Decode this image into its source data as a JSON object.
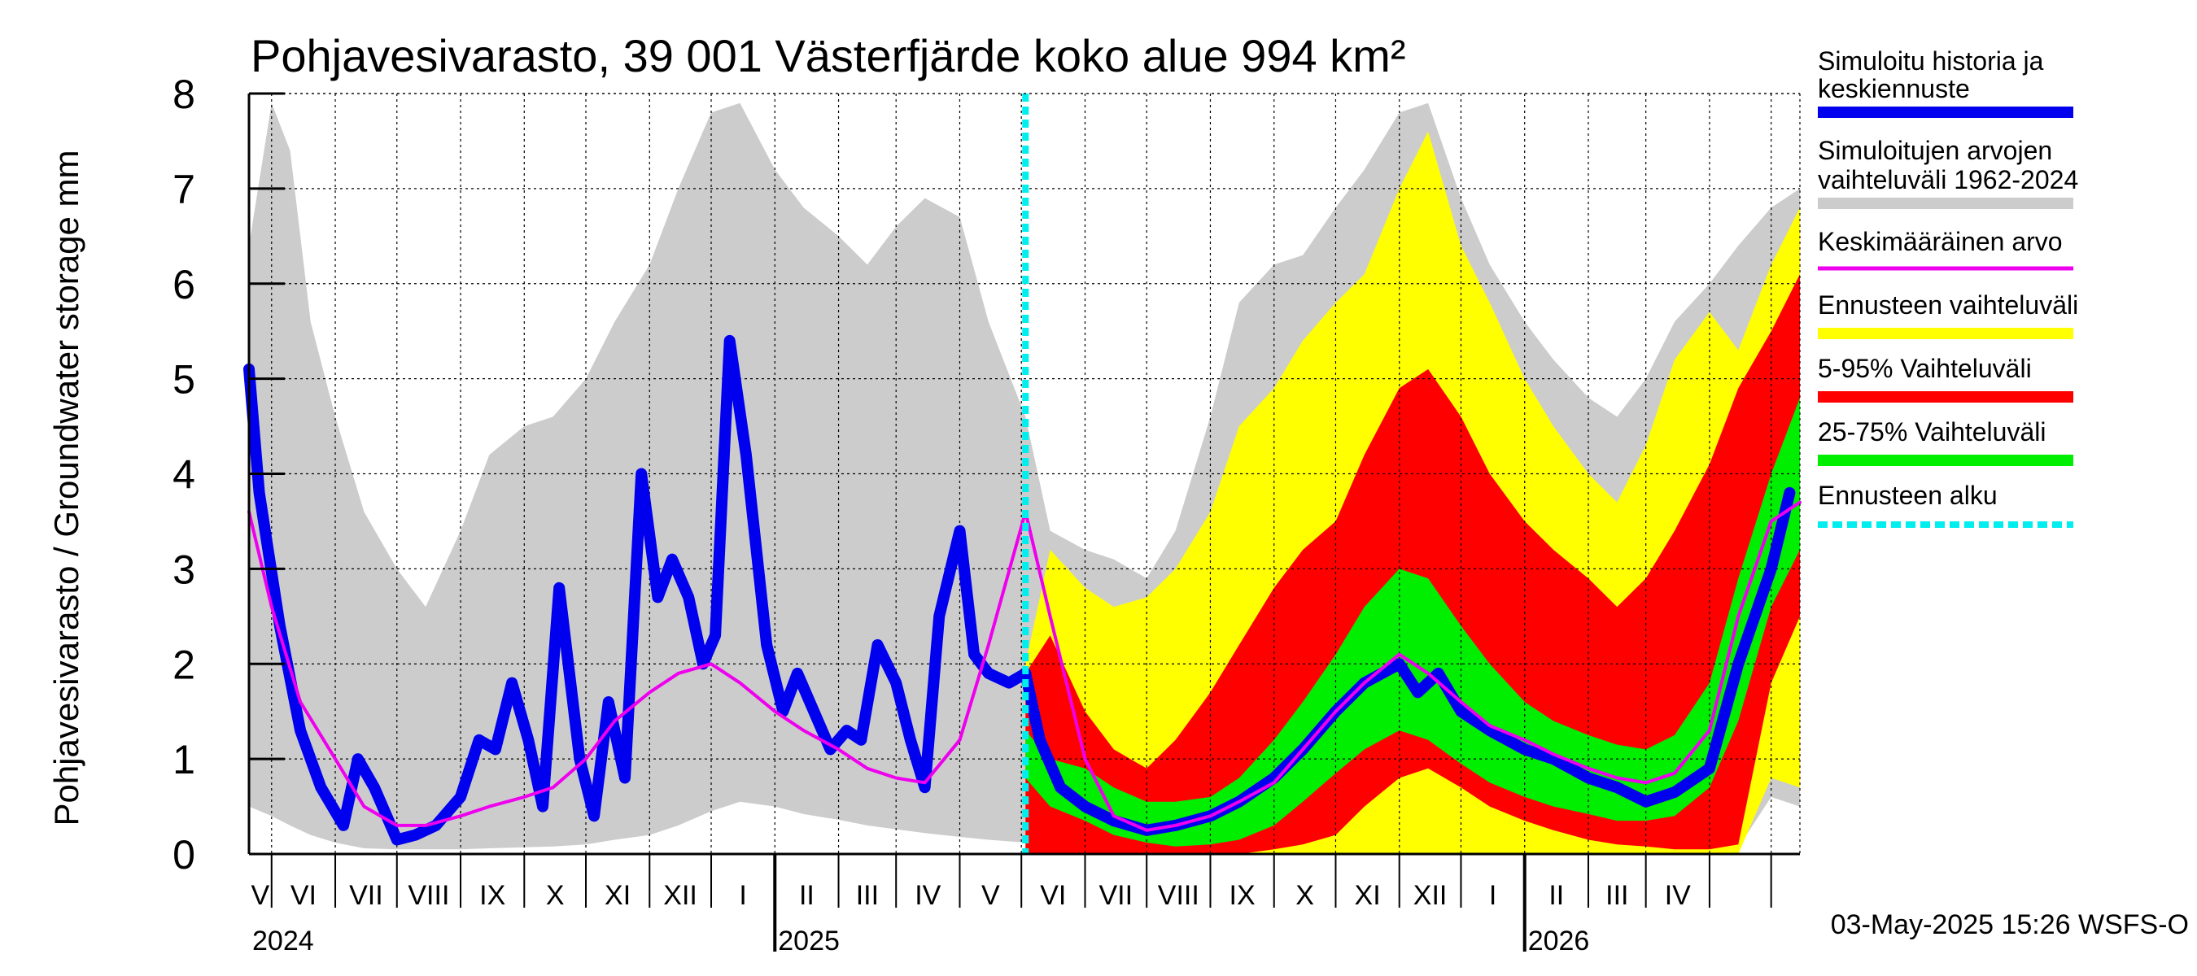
{
  "chart_data": {
    "type": "area",
    "title": "Pohjavesivarasto, 39 001 Västerfjärde koko alue 994 km²",
    "ylabel": "Pohjavesivarasto / Groundwater storage   mm",
    "xlabel": "",
    "ylim": [
      0,
      8
    ],
    "yticks": [
      0,
      1,
      2,
      3,
      4,
      5,
      6,
      7,
      8
    ],
    "xlim": [
      "2024-04-20",
      "2026-05-15"
    ],
    "months": [
      "V",
      "VI",
      "VII",
      "VIII",
      "IX",
      "X",
      "XI",
      "XII",
      "I",
      "II",
      "III",
      "IV",
      "V",
      "VI",
      "VII",
      "VIII",
      "IX",
      "X",
      "XI",
      "XII",
      "I",
      "II",
      "III",
      "IV"
    ],
    "years": [
      "2024",
      "2025",
      "2026"
    ],
    "grid": true,
    "forecast_start": "2025-05-03",
    "legend_position": "right",
    "legend": [
      {
        "label": "Simuloitu historia ja keskiennuste",
        "line1": "Simuloitu historia ja",
        "line2": "keskiennuste",
        "color": "#0000ee"
      },
      {
        "label": "Simuloitujen arvojen vaihteluväli 1962-2024",
        "line1": "Simuloitujen arvojen",
        "line2": "vaihteluväli 1962-2024",
        "color": "#cccccc"
      },
      {
        "label": "Keskimääräinen arvo",
        "line1": "Keskimääräinen arvo",
        "line2": "",
        "color": "#ee00ee"
      },
      {
        "label": "Ennusteen vaihteluväli",
        "line1": "Ennusteen vaihteluväli",
        "line2": "",
        "color": "#ffff00"
      },
      {
        "label": "5-95% Vaihteluväli",
        "line1": "5-95% Vaihteluväli",
        "line2": "",
        "color": "#ff0000"
      },
      {
        "label": "25-75% Vaihteluväli",
        "line1": "25-75% Vaihteluväli",
        "line2": "",
        "color": "#00ee00"
      },
      {
        "label": "Ennusteen alku",
        "line1": "Ennusteen alku",
        "line2": "",
        "color": "#00eeee"
      }
    ],
    "series": [
      {
        "name": "Simuloitujen arvojen vaihteluväli 1962-2024",
        "x": [
          "2024-04-20",
          "2024-05-01",
          "2024-05-10",
          "2024-05-20",
          "2024-06-01",
          "2024-06-15",
          "2024-07-01",
          "2024-07-15",
          "2024-08-01",
          "2024-08-15",
          "2024-09-01",
          "2024-09-15",
          "2024-10-01",
          "2024-10-15",
          "2024-11-01",
          "2024-11-15",
          "2024-12-01",
          "2024-12-15",
          "2025-01-01",
          "2025-01-15",
          "2025-02-01",
          "2025-02-15",
          "2025-03-01",
          "2025-03-15",
          "2025-04-01",
          "2025-04-15",
          "2025-05-03",
          "2025-05-15",
          "2025-06-01",
          "2025-06-15",
          "2025-07-01",
          "2025-07-15",
          "2025-08-01",
          "2025-08-15",
          "2025-09-01",
          "2025-09-15",
          "2025-10-01",
          "2025-10-15",
          "2025-11-01",
          "2025-11-15",
          "2025-12-01",
          "2025-12-15",
          "2026-01-01",
          "2026-01-15",
          "2026-02-01",
          "2026-02-15",
          "2026-03-01",
          "2026-03-15",
          "2026-04-01",
          "2026-04-15",
          "2026-05-01",
          "2026-05-15"
        ],
        "upper": [
          6.4,
          7.9,
          7.4,
          5.6,
          4.6,
          3.6,
          3.0,
          2.6,
          3.4,
          4.2,
          4.5,
          4.6,
          5.0,
          5.6,
          6.2,
          7.0,
          7.8,
          7.9,
          7.2,
          6.8,
          6.5,
          6.2,
          6.6,
          6.9,
          6.7,
          5.6,
          4.6,
          3.4,
          3.2,
          3.1,
          2.9,
          3.4,
          4.6,
          5.8,
          6.2,
          6.3,
          6.8,
          7.2,
          7.8,
          7.9,
          6.9,
          6.2,
          5.6,
          5.2,
          4.8,
          4.6,
          5.0,
          5.6,
          6.0,
          6.4,
          6.8,
          7.0
        ],
        "lower": [
          0.5,
          0.4,
          0.3,
          0.2,
          0.12,
          0.06,
          0.05,
          0.05,
          0.05,
          0.06,
          0.07,
          0.08,
          0.1,
          0.15,
          0.2,
          0.3,
          0.45,
          0.55,
          0.5,
          0.42,
          0.36,
          0.3,
          0.26,
          0.22,
          0.18,
          0.15,
          0.12,
          0.1,
          0.08,
          0.06,
          0.05,
          0.05,
          0.05,
          0.05,
          0.06,
          0.07,
          0.08,
          0.1,
          0.12,
          0.14,
          0.16,
          0.15,
          0.13,
          0.12,
          0.1,
          0.09,
          0.08,
          0.08,
          0.07,
          0.07,
          0.6,
          0.5
        ]
      },
      {
        "name": "Ennusteen vaihteluväli",
        "x": [
          "2025-05-03",
          "2025-05-15",
          "2025-06-01",
          "2025-06-15",
          "2025-07-01",
          "2025-07-15",
          "2025-08-01",
          "2025-08-15",
          "2025-09-01",
          "2025-09-15",
          "2025-10-01",
          "2025-10-15",
          "2025-11-01",
          "2025-11-15",
          "2025-12-01",
          "2025-12-15",
          "2026-01-01",
          "2026-01-15",
          "2026-02-01",
          "2026-02-15",
          "2026-03-01",
          "2026-03-15",
          "2026-04-01",
          "2026-04-15",
          "2026-05-01",
          "2026-05-15"
        ],
        "upper": [
          2.0,
          3.2,
          2.8,
          2.6,
          2.7,
          3.0,
          3.6,
          4.5,
          4.9,
          5.4,
          5.8,
          6.1,
          7.0,
          7.6,
          6.4,
          5.8,
          5.0,
          4.5,
          4.0,
          3.7,
          4.3,
          5.2,
          5.7,
          5.3,
          6.2,
          6.8
        ],
        "lower": [
          0.0,
          0.0,
          0.0,
          0.0,
          0.0,
          0.0,
          0.0,
          0.0,
          0.0,
          0.0,
          0.0,
          0.0,
          0.0,
          0.0,
          0.0,
          0.0,
          0.0,
          0.0,
          0.0,
          0.0,
          0.0,
          0.0,
          0.0,
          0.0,
          0.8,
          0.7
        ]
      },
      {
        "name": "5-95% Vaihteluväli",
        "x": [
          "2025-05-03",
          "2025-05-15",
          "2025-06-01",
          "2025-06-15",
          "2025-07-01",
          "2025-07-15",
          "2025-08-01",
          "2025-08-15",
          "2025-09-01",
          "2025-09-15",
          "2025-10-01",
          "2025-10-15",
          "2025-11-01",
          "2025-11-15",
          "2025-12-01",
          "2025-12-15",
          "2026-01-01",
          "2026-01-15",
          "2026-02-01",
          "2026-02-15",
          "2026-03-01",
          "2026-03-15",
          "2026-04-01",
          "2026-04-15",
          "2026-05-01",
          "2026-05-15"
        ],
        "upper": [
          1.9,
          2.3,
          1.5,
          1.1,
          0.9,
          1.2,
          1.7,
          2.2,
          2.8,
          3.2,
          3.5,
          4.2,
          4.9,
          5.1,
          4.6,
          4.0,
          3.5,
          3.2,
          2.9,
          2.6,
          2.9,
          3.4,
          4.1,
          4.9,
          5.5,
          6.1
        ],
        "lower": [
          0.0,
          0.0,
          0.0,
          0.0,
          0.0,
          0.0,
          0.0,
          0.0,
          0.05,
          0.1,
          0.2,
          0.5,
          0.8,
          0.9,
          0.7,
          0.5,
          0.35,
          0.25,
          0.15,
          0.1,
          0.08,
          0.05,
          0.05,
          0.1,
          1.8,
          2.5
        ]
      },
      {
        "name": "25-75% Vaihteluväli",
        "x": [
          "2025-05-03",
          "2025-05-15",
          "2025-06-01",
          "2025-06-15",
          "2025-07-01",
          "2025-07-15",
          "2025-08-01",
          "2025-08-15",
          "2025-09-01",
          "2025-09-15",
          "2025-10-01",
          "2025-10-15",
          "2025-11-01",
          "2025-11-15",
          "2025-12-01",
          "2025-12-15",
          "2026-01-01",
          "2026-01-15",
          "2026-02-01",
          "2026-02-15",
          "2026-03-01",
          "2026-03-15",
          "2026-04-01",
          "2026-04-15",
          "2026-05-01",
          "2026-05-15"
        ],
        "upper": [
          1.3,
          1.0,
          0.9,
          0.7,
          0.55,
          0.55,
          0.6,
          0.8,
          1.2,
          1.6,
          2.1,
          2.6,
          3.0,
          2.9,
          2.4,
          2.0,
          1.6,
          1.4,
          1.25,
          1.15,
          1.1,
          1.25,
          1.8,
          2.9,
          4.0,
          4.8
        ],
        "lower": [
          0.8,
          0.5,
          0.35,
          0.2,
          0.12,
          0.08,
          0.1,
          0.15,
          0.3,
          0.55,
          0.85,
          1.1,
          1.3,
          1.2,
          0.95,
          0.75,
          0.6,
          0.5,
          0.42,
          0.35,
          0.35,
          0.4,
          0.7,
          1.4,
          2.6,
          3.2
        ]
      },
      {
        "name": "Simuloitu historia ja keskiennuste",
        "x": [
          "2024-04-20",
          "2024-04-25",
          "2024-05-05",
          "2024-05-15",
          "2024-05-25",
          "2024-06-05",
          "2024-06-12",
          "2024-06-20",
          "2024-07-01",
          "2024-07-10",
          "2024-07-20",
          "2024-08-01",
          "2024-08-10",
          "2024-08-18",
          "2024-08-26",
          "2024-09-03",
          "2024-09-10",
          "2024-09-18",
          "2024-09-28",
          "2024-10-05",
          "2024-10-12",
          "2024-10-20",
          "2024-10-28",
          "2024-11-05",
          "2024-11-12",
          "2024-11-20",
          "2024-11-27",
          "2024-12-03",
          "2024-12-10",
          "2024-12-18",
          "2024-12-28",
          "2025-01-05",
          "2025-01-12",
          "2025-01-20",
          "2025-01-28",
          "2025-02-05",
          "2025-02-12",
          "2025-02-20",
          "2025-03-01",
          "2025-03-08",
          "2025-03-15",
          "2025-03-22",
          "2025-04-01",
          "2025-04-08",
          "2025-04-15",
          "2025-04-25",
          "2025-05-03",
          "2025-05-10",
          "2025-05-20",
          "2025-06-01",
          "2025-06-15",
          "2025-07-01",
          "2025-07-15",
          "2025-08-01",
          "2025-08-15",
          "2025-09-01",
          "2025-09-15",
          "2025-10-01",
          "2025-10-15",
          "2025-11-01",
          "2025-11-10",
          "2025-11-20",
          "2025-12-01",
          "2025-12-15",
          "2026-01-01",
          "2026-01-15",
          "2026-02-01",
          "2026-02-15",
          "2026-03-01",
          "2026-03-15",
          "2026-04-01",
          "2026-04-15",
          "2026-05-01",
          "2026-05-10"
        ],
        "values": [
          5.1,
          3.8,
          2.4,
          1.3,
          0.7,
          0.3,
          1.0,
          0.7,
          0.15,
          0.2,
          0.3,
          0.6,
          1.2,
          1.1,
          1.8,
          1.2,
          0.5,
          2.8,
          1.0,
          0.4,
          1.6,
          0.8,
          4.0,
          2.7,
          3.1,
          2.7,
          2.0,
          2.3,
          5.4,
          4.2,
          2.2,
          1.5,
          1.9,
          1.5,
          1.1,
          1.3,
          1.2,
          2.2,
          1.8,
          1.2,
          0.7,
          2.5,
          3.4,
          2.1,
          1.9,
          1.8,
          1.9,
          1.2,
          0.7,
          0.5,
          0.35,
          0.25,
          0.3,
          0.4,
          0.55,
          0.8,
          1.1,
          1.5,
          1.8,
          2.0,
          1.7,
          1.9,
          1.5,
          1.3,
          1.1,
          1.0,
          0.8,
          0.7,
          0.55,
          0.65,
          0.9,
          2.0,
          3.0,
          3.8
        ]
      },
      {
        "name": "Keskimääräinen arvo",
        "x": [
          "2024-04-20",
          "2024-05-01",
          "2024-05-15",
          "2024-06-01",
          "2024-06-15",
          "2024-07-01",
          "2024-07-15",
          "2024-08-01",
          "2024-08-15",
          "2024-09-01",
          "2024-09-15",
          "2024-10-01",
          "2024-10-15",
          "2024-11-01",
          "2024-11-15",
          "2024-12-01",
          "2024-12-15",
          "2025-01-01",
          "2025-01-15",
          "2025-02-01",
          "2025-02-15",
          "2025-03-01",
          "2025-03-15",
          "2025-04-01",
          "2025-04-15",
          "2025-05-03",
          "2025-05-15",
          "2025-06-01",
          "2025-06-15",
          "2025-07-01",
          "2025-07-15",
          "2025-08-01",
          "2025-08-15",
          "2025-09-01",
          "2025-09-15",
          "2025-10-01",
          "2025-10-15",
          "2025-11-01",
          "2025-11-15",
          "2025-12-01",
          "2025-12-15",
          "2026-01-01",
          "2026-01-15",
          "2026-02-01",
          "2026-02-15",
          "2026-03-01",
          "2026-03-15",
          "2026-04-01",
          "2026-04-15",
          "2026-05-01",
          "2026-05-15"
        ],
        "values": [
          3.6,
          2.6,
          1.6,
          1.0,
          0.5,
          0.3,
          0.3,
          0.4,
          0.5,
          0.6,
          0.7,
          1.0,
          1.4,
          1.7,
          1.9,
          2.0,
          1.8,
          1.5,
          1.3,
          1.1,
          0.9,
          0.8,
          0.75,
          1.2,
          2.2,
          3.6,
          2.5,
          1.0,
          0.4,
          0.25,
          0.3,
          0.4,
          0.55,
          0.75,
          1.1,
          1.5,
          1.8,
          2.1,
          1.9,
          1.6,
          1.35,
          1.2,
          1.05,
          0.9,
          0.8,
          0.75,
          0.85,
          1.3,
          2.5,
          3.5,
          3.7
        ]
      }
    ]
  },
  "stamp": "03-May-2025 15:26 WSFS-O"
}
